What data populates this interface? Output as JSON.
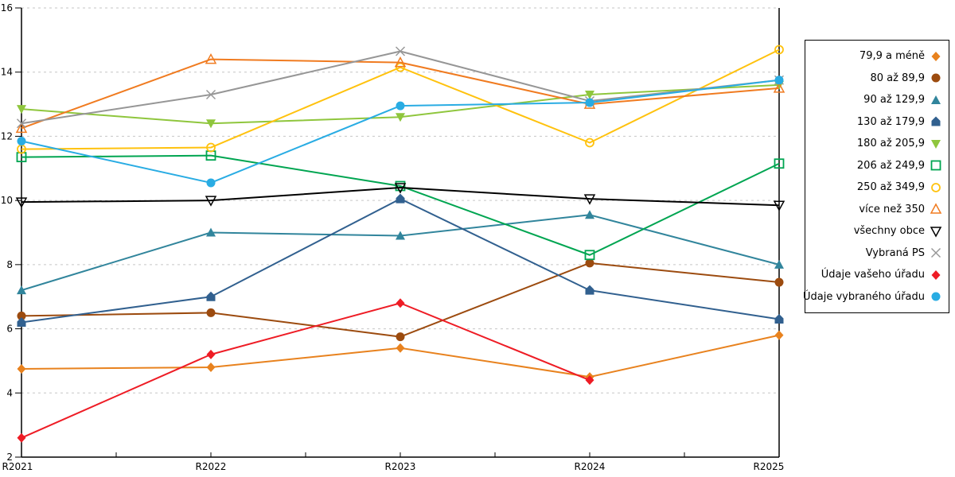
{
  "chart_data": {
    "type": "line",
    "title": "",
    "xlabel": "",
    "ylabel": "",
    "categories": [
      "R2021",
      "R2022",
      "R2023",
      "R2024",
      "R2025"
    ],
    "ylim": [
      2,
      16
    ],
    "ytick_step": 2,
    "yticks": [
      2,
      4,
      6,
      8,
      10,
      12,
      14,
      16
    ],
    "grid": "horizontal-dashed",
    "legend_position": "right",
    "series": [
      {
        "name": "79,9 a méně",
        "color": "#E8821E",
        "marker": "diamond-filled",
        "values": [
          4.75,
          4.8,
          5.4,
          4.5,
          5.8
        ]
      },
      {
        "name": "80 až 89,9",
        "color": "#9C4B0F",
        "marker": "circle-filled",
        "values": [
          6.4,
          6.5,
          5.75,
          8.05,
          7.45
        ]
      },
      {
        "name": "90 až 129,9",
        "color": "#31859C",
        "marker": "triangle-up-filled",
        "values": [
          7.2,
          9.0,
          8.9,
          9.55,
          8.0
        ]
      },
      {
        "name": "130 až 179,9",
        "color": "#31608F",
        "marker": "pentagon-filled",
        "values": [
          6.2,
          7.0,
          10.05,
          7.2,
          6.3
        ]
      },
      {
        "name": "180 až 205,9",
        "color": "#8FC63D",
        "marker": "triangle-down-filled",
        "values": [
          12.85,
          12.4,
          12.6,
          13.3,
          13.6
        ]
      },
      {
        "name": "206 až 249,9",
        "color": "#00A551",
        "marker": "square-open",
        "values": [
          11.35,
          11.4,
          10.45,
          8.3,
          11.15
        ]
      },
      {
        "name": "250 až 349,9",
        "color": "#FFC20E",
        "marker": "circle-open",
        "values": [
          11.6,
          11.65,
          14.15,
          11.8,
          14.7
        ]
      },
      {
        "name": "více než 350",
        "color": "#F07B20",
        "marker": "triangle-up-open",
        "values": [
          12.25,
          14.4,
          14.3,
          13.0,
          13.5
        ]
      },
      {
        "name": "všechny obce",
        "color": "#000000",
        "marker": "triangle-down-open",
        "values": [
          9.95,
          10.0,
          10.4,
          10.05,
          9.85
        ]
      },
      {
        "name": "Vybraná PS",
        "color": "#969696",
        "marker": "x-cross",
        "values": [
          12.4,
          13.3,
          14.65,
          13.1,
          13.75
        ]
      },
      {
        "name": "Údaje vašeho úřadu",
        "color": "#EE1C25",
        "marker": "diamond-filled",
        "values": [
          2.6,
          5.2,
          6.8,
          4.4,
          null
        ]
      },
      {
        "name": "Údaje vybraného úřadu",
        "color": "#29ACE3",
        "marker": "circle-filled",
        "values": [
          11.85,
          10.55,
          12.95,
          13.05,
          13.75
        ]
      }
    ],
    "colors": {
      "grid": "#C6C6C6",
      "axis": "#000000",
      "tick_label": "#000000",
      "background": "#FFFFFF"
    }
  }
}
